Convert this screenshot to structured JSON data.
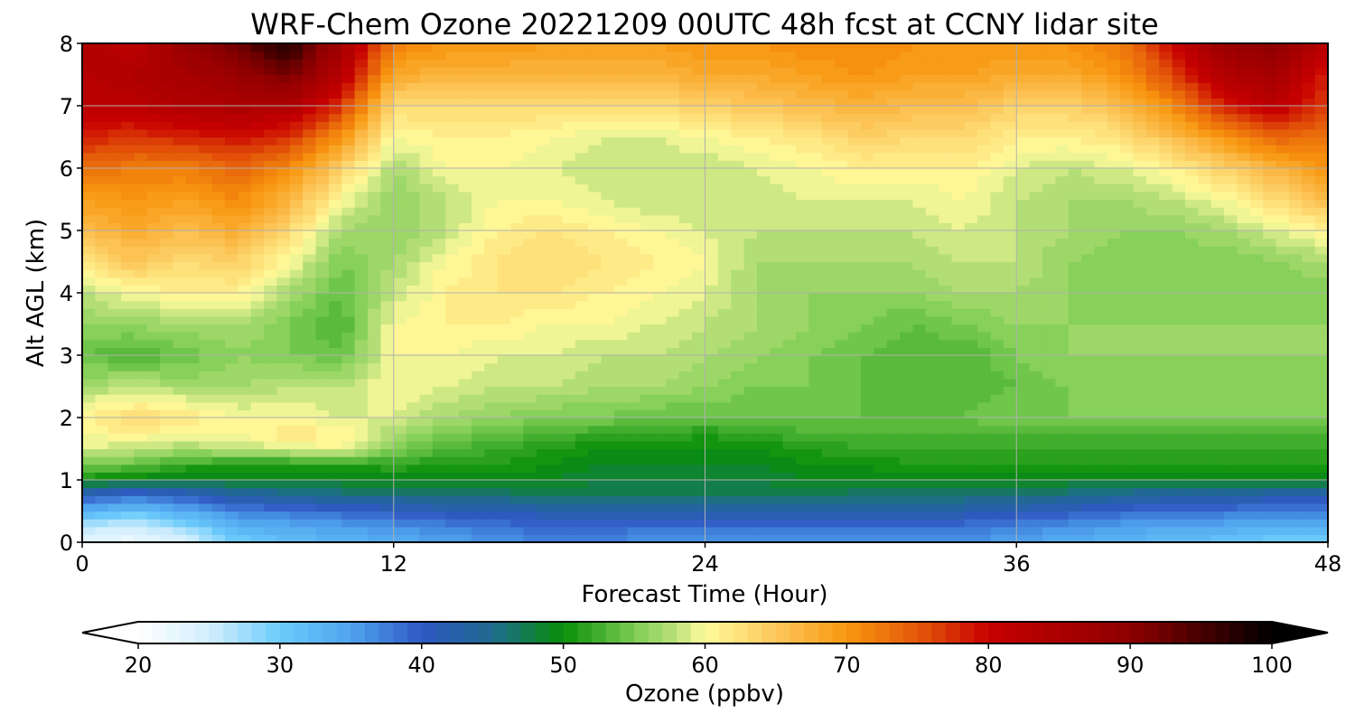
{
  "chart_data": {
    "type": "heatmap",
    "title": "WRF-Chem Ozone  20221209 00UTC 48h fcst at CCNY lidar site",
    "xlabel": "Forecast Time (Hour)",
    "ylabel": "Alt AGL (km)",
    "xlim": [
      0,
      48
    ],
    "ylim": [
      0,
      8
    ],
    "xticks": [
      0,
      12,
      24,
      36,
      48
    ],
    "yticks": [
      0,
      1,
      2,
      3,
      4,
      5,
      6,
      7,
      8
    ],
    "grid": true,
    "x": [
      0,
      2,
      4,
      6,
      8,
      10,
      12,
      14,
      16,
      18,
      20,
      22,
      24,
      26,
      28,
      30,
      32,
      34,
      36,
      38,
      40,
      42,
      44,
      46,
      48
    ],
    "y": [
      0,
      0.25,
      0.5,
      0.75,
      1,
      1.25,
      1.5,
      1.75,
      2,
      2.5,
      3,
      3.5,
      4,
      4.5,
      5,
      5.5,
      6,
      6.5,
      7,
      7.5,
      8
    ],
    "z": [
      [
        23,
        22,
        24,
        30,
        32,
        33,
        34,
        35,
        36,
        37,
        37,
        36,
        36,
        36,
        36,
        36,
        36,
        36,
        35,
        34,
        33,
        32,
        31,
        30,
        29
      ],
      [
        26,
        25,
        28,
        33,
        34,
        35,
        36,
        37,
        38,
        39,
        39,
        38,
        38,
        38,
        38,
        38,
        38,
        38,
        37,
        36,
        35,
        34,
        34,
        33,
        33
      ],
      [
        33,
        31,
        34,
        37,
        38,
        39,
        40,
        41,
        41,
        42,
        42,
        42,
        42,
        42,
        42,
        42,
        42,
        42,
        41,
        40,
        39,
        38,
        38,
        37,
        37
      ],
      [
        40,
        38,
        40,
        43,
        44,
        45,
        45,
        46,
        46,
        47,
        47,
        47,
        47,
        47,
        47,
        46,
        46,
        46,
        46,
        45,
        44,
        43,
        43,
        42,
        42
      ],
      [
        50,
        49,
        48,
        49,
        49,
        49,
        49,
        49,
        49,
        49,
        48,
        48,
        48,
        48,
        49,
        49,
        49,
        49,
        49,
        49,
        49,
        49,
        49,
        49,
        49
      ],
      [
        55,
        54,
        52,
        51,
        51,
        51,
        52,
        51,
        51,
        50,
        49,
        49,
        49,
        49,
        50,
        50,
        51,
        51,
        51,
        51,
        51,
        51,
        51,
        51,
        51
      ],
      [
        59,
        58,
        57,
        58,
        59,
        60,
        55,
        53,
        52,
        51,
        50,
        50,
        50,
        50,
        51,
        52,
        52,
        52,
        52,
        52,
        52,
        52,
        52,
        52,
        52
      ],
      [
        60,
        61,
        60,
        60,
        62,
        61,
        57,
        55,
        54,
        53,
        52,
        52,
        51,
        52,
        53,
        53,
        53,
        53,
        53,
        53,
        53,
        53,
        53,
        53,
        53
      ],
      [
        61,
        63,
        62,
        60,
        60,
        59,
        59,
        57,
        56,
        55,
        55,
        54,
        54,
        54,
        54,
        54,
        54,
        54,
        55,
        55,
        55,
        55,
        55,
        55,
        55
      ],
      [
        57,
        58,
        57,
        57,
        58,
        58,
        60,
        59,
        58,
        58,
        57,
        57,
        56,
        55,
        55,
        54,
        53,
        53,
        54,
        55,
        55,
        55,
        55,
        55,
        55
      ],
      [
        54,
        53,
        54,
        56,
        55,
        54,
        60,
        60,
        59,
        59,
        58,
        58,
        57,
        56,
        55,
        54,
        53,
        53,
        55,
        56,
        56,
        56,
        56,
        56,
        56
      ],
      [
        56,
        56,
        57,
        57,
        55,
        53,
        60,
        61,
        61,
        60,
        60,
        59,
        58,
        57,
        56,
        55,
        54,
        55,
        56,
        56,
        56,
        56,
        56,
        56,
        56
      ],
      [
        58,
        60,
        61,
        61,
        57,
        54,
        58,
        61,
        62,
        62,
        61,
        60,
        59,
        57,
        56,
        56,
        56,
        57,
        57,
        56,
        55,
        55,
        55,
        55,
        55
      ],
      [
        62,
        65,
        63,
        64,
        60,
        55,
        57,
        60,
        62,
        63,
        62,
        61,
        60,
        57,
        57,
        57,
        57,
        58,
        58,
        56,
        55,
        55,
        55,
        56,
        57
      ],
      [
        66,
        68,
        66,
        68,
        63,
        57,
        56,
        58,
        61,
        62,
        61,
        60,
        59,
        58,
        58,
        58,
        58,
        59,
        58,
        57,
        56,
        56,
        57,
        59,
        61
      ],
      [
        69,
        70,
        69,
        71,
        67,
        60,
        56,
        58,
        60,
        60,
        59,
        58,
        58,
        58,
        59,
        59,
        59,
        60,
        58,
        57,
        57,
        58,
        60,
        63,
        66
      ],
      [
        73,
        72,
        72,
        74,
        71,
        64,
        57,
        60,
        60,
        59,
        58,
        58,
        58,
        59,
        60,
        61,
        61,
        61,
        59,
        58,
        59,
        61,
        64,
        67,
        70
      ],
      [
        78,
        77,
        78,
        79,
        77,
        70,
        60,
        61,
        61,
        60,
        59,
        59,
        60,
        61,
        62,
        64,
        63,
        63,
        61,
        61,
        62,
        66,
        70,
        74,
        73
      ],
      [
        82,
        82,
        84,
        85,
        84,
        77,
        63,
        63,
        63,
        63,
        63,
        63,
        64,
        65,
        66,
        67,
        66,
        66,
        64,
        64,
        66,
        71,
        78,
        82,
        76
      ],
      [
        83,
        84,
        86,
        88,
        92,
        83,
        68,
        67,
        67,
        67,
        67,
        67,
        68,
        68,
        69,
        70,
        69,
        69,
        68,
        68,
        70,
        76,
        84,
        86,
        78
      ],
      [
        84,
        82,
        88,
        93,
        98,
        86,
        72,
        70,
        70,
        69,
        69,
        69,
        70,
        70,
        71,
        71,
        70,
        70,
        70,
        70,
        72,
        80,
        88,
        90,
        82
      ]
    ],
    "colorbar": {
      "label": "Ozone  (ppbv)",
      "min": 20,
      "max": 100,
      "step": 1,
      "extend": "both",
      "ticks": [
        20,
        30,
        40,
        50,
        60,
        70,
        80,
        90,
        100
      ],
      "colormap": [
        [
          20,
          "#ffffff"
        ],
        [
          25,
          "#d3eefd"
        ],
        [
          30,
          "#6ccbfb"
        ],
        [
          35,
          "#4fa3ee"
        ],
        [
          40,
          "#2f58c3"
        ],
        [
          45,
          "#1f6b8f"
        ],
        [
          50,
          "#088f08"
        ],
        [
          55,
          "#7ccc52"
        ],
        [
          58,
          "#bde27c"
        ],
        [
          60,
          "#fffb9c"
        ],
        [
          65,
          "#fcc75a"
        ],
        [
          70,
          "#f8960f"
        ],
        [
          75,
          "#e45809"
        ],
        [
          80,
          "#c70000"
        ],
        [
          90,
          "#8e0000"
        ],
        [
          100,
          "#000000"
        ]
      ]
    }
  }
}
